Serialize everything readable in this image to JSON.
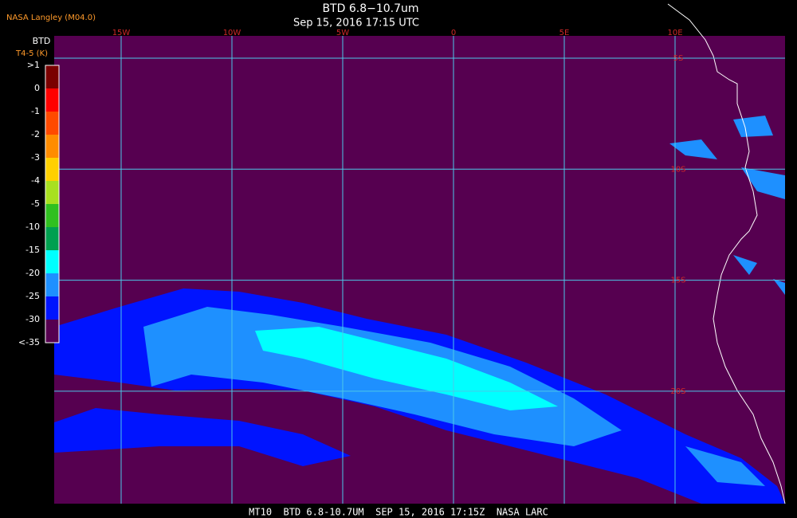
{
  "header": {
    "source": "NASA Langley (M04.0)",
    "title": "BTD 6.8−10.7um",
    "subtitle": "Sep 15, 2016 17:15 UTC"
  },
  "colorbar": {
    "title": "BTD",
    "unit": "T4-5 (K)",
    "labels": [
      ">1",
      "0",
      "-1",
      "-2",
      "-3",
      "-4",
      "-5",
      "-10",
      "-15",
      "-20",
      "-25",
      "-30",
      "<-35"
    ],
    "colors": [
      "#7a0000",
      "#ff0000",
      "#ff4a00",
      "#ff8c00",
      "#ffd000",
      "#a8e020",
      "#30c020",
      "#00a050",
      "#00ffff",
      "#1e90ff",
      "#0014ff",
      "#560050"
    ]
  },
  "map": {
    "longitudes": [
      "15W",
      "10W",
      "5W",
      "0",
      "5E",
      "10E"
    ],
    "latitudes": [
      "5S",
      "10S",
      "15S",
      "20S"
    ],
    "background": "#560050",
    "grid_color": "#4cc8e8",
    "label_color": "#d02828"
  },
  "footer": "MT10  BTD 6.8-10.7UM  SEP 15, 2016 17:15Z  NASA LARC"
}
